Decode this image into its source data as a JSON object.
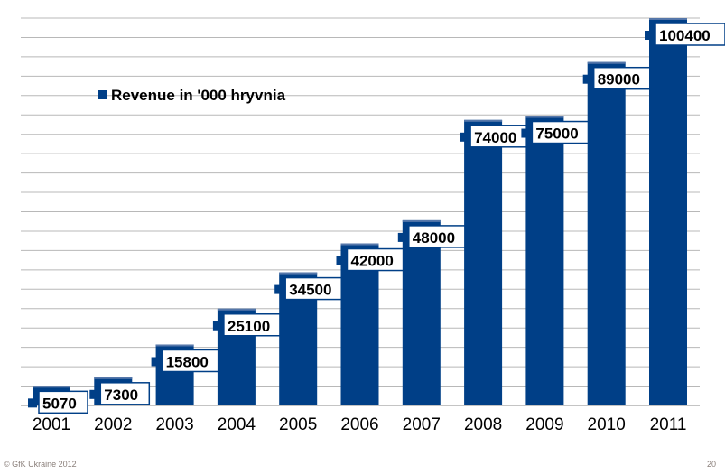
{
  "chart_data": {
    "type": "bar",
    "title": "",
    "categories": [
      "2001",
      "2002",
      "2003",
      "2004",
      "2005",
      "2006",
      "2007",
      "2008",
      "2009",
      "2010",
      "2011"
    ],
    "series": [
      {
        "name": "Revenue in '000 hryvnia",
        "values": [
          5070,
          7300,
          15800,
          25100,
          34500,
          42000,
          48000,
          74000,
          75000,
          89000,
          100400
        ]
      }
    ],
    "xlabel": "",
    "ylabel": "",
    "ylim": [
      0,
      100400
    ],
    "grid": true,
    "legend": "top-left",
    "color": "#003f87"
  },
  "footer": {
    "copyright": "GfK Ukraine 2012",
    "page_number": "20"
  }
}
